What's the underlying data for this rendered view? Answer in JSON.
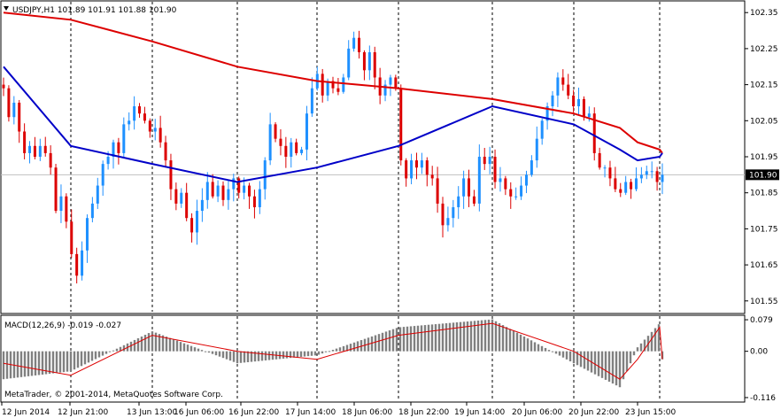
{
  "window": {
    "symbol_title": "USDJPY,H1  101.89 101.91 101.88 101.90",
    "copyright": "MetaTrader, © 2001-2014, MetaQuotes Software Corp."
  },
  "colors": {
    "background": "#ffffff",
    "bull_candle": "#1e90ff",
    "bear_candle": "#dc0000",
    "ma_slow": "#dd0000",
    "ma_fast": "#0000c8",
    "macd_hist": "#808080",
    "macd_signal": "#dd0000",
    "grid": "#000000",
    "bid_line": "#c0c0c0",
    "price_tag_bg": "#000000",
    "price_tag_text": "#ffffff"
  },
  "chart_data": [
    {
      "type": "candlestick",
      "title": "USDJPY,H1",
      "ohlc_header": {
        "open": 101.89,
        "high": 101.91,
        "low": 101.88,
        "close": 101.9
      },
      "current_price": "101.90",
      "y_ticks": [
        "102.35",
        "102.25",
        "102.15",
        "102.05",
        "101.95",
        "101.85",
        "101.75",
        "101.65",
        "101.55"
      ],
      "ylim": [
        101.52,
        102.38
      ],
      "x_ticks": [
        "12 Jun 2014",
        "12 Jun 21:00",
        "13 Jun 13:00",
        "16 Jun 06:00",
        "16 Jun 22:00",
        "17 Jun 14:00",
        "18 Jun 06:00",
        "18 Jun 22:00",
        "19 Jun 14:00",
        "20 Jun 06:00",
        "20 Jun 22:00",
        "23 Jun 15:00"
      ],
      "vertical_grid": "dashed, at each x tick",
      "close_series": [
        102.14,
        102.06,
        102.1,
        102.02,
        101.96,
        101.98,
        101.95,
        101.98,
        101.96,
        101.92,
        101.8,
        101.84,
        101.77,
        101.68,
        101.62,
        101.69,
        101.78,
        101.82,
        101.87,
        101.93,
        101.95,
        101.99,
        101.96,
        102.04,
        102.05,
        102.09,
        102.07,
        102.05,
        102.02,
        102.03,
        101.99,
        101.94,
        101.86,
        101.82,
        101.85,
        101.78,
        101.74,
        101.8,
        101.83,
        101.88,
        101.84,
        101.87,
        101.83,
        101.86,
        101.89,
        101.85,
        101.87,
        101.84,
        101.81,
        101.86,
        101.94,
        102.04,
        102.0,
        101.98,
        101.95,
        101.99,
        101.96,
        101.97,
        102.07,
        102.14,
        102.18,
        102.12,
        102.16,
        102.14,
        102.13,
        102.17,
        102.25,
        102.28,
        102.24,
        102.19,
        102.24,
        102.17,
        102.12,
        102.15,
        102.17,
        102.14,
        101.94,
        101.89,
        101.94,
        101.92,
        101.94,
        101.9,
        101.89,
        101.82,
        101.76,
        101.78,
        101.81,
        101.84,
        101.89,
        101.84,
        101.82,
        101.95,
        101.93,
        101.95,
        101.88,
        101.89,
        101.86,
        101.84,
        101.84,
        101.87,
        101.9,
        101.94,
        102.0,
        102.05,
        102.09,
        102.12,
        102.17,
        102.15,
        102.12,
        102.09,
        102.11,
        102.06,
        102.07,
        101.96,
        101.92,
        101.92,
        101.89,
        101.86,
        101.85,
        101.88,
        101.86,
        101.89,
        101.9,
        101.91,
        101.91,
        101.88,
        101.9
      ],
      "moving_averages": [
        {
          "color": "#dd0000",
          "values_at_ticks": [
            102.35,
            102.33,
            102.27,
            102.2,
            102.16,
            102.14,
            102.11,
            102.07,
            102.03,
            101.99,
            101.97,
            101.96
          ]
        },
        {
          "color": "#0000c8",
          "values_at_ticks": [
            102.2,
            101.98,
            101.93,
            101.88,
            101.92,
            101.98,
            102.09,
            102.04,
            101.97,
            101.94,
            101.95,
            101.96
          ]
        }
      ]
    },
    {
      "type": "bar",
      "title": "MACD(12,26,9) -0.019 -0.027",
      "indicator": {
        "name": "MACD",
        "params": "12,26,9",
        "main": "-0.019",
        "signal": "-0.027"
      },
      "y_ticks": [
        "0.079",
        "0.00",
        "-0.116"
      ],
      "ylim": [
        -0.125,
        0.088
      ],
      "values_at_ticks": [
        -0.07,
        -0.05,
        0.05,
        -0.03,
        -0.01,
        0.06,
        0.08,
        -0.03,
        -0.09,
        0.01,
        0.07,
        -0.02
      ],
      "signal_at_ticks": [
        -0.03,
        -0.06,
        0.04,
        0.0,
        -0.02,
        0.04,
        0.07,
        0.0,
        -0.07,
        -0.02,
        0.06,
        -0.02
      ]
    }
  ]
}
